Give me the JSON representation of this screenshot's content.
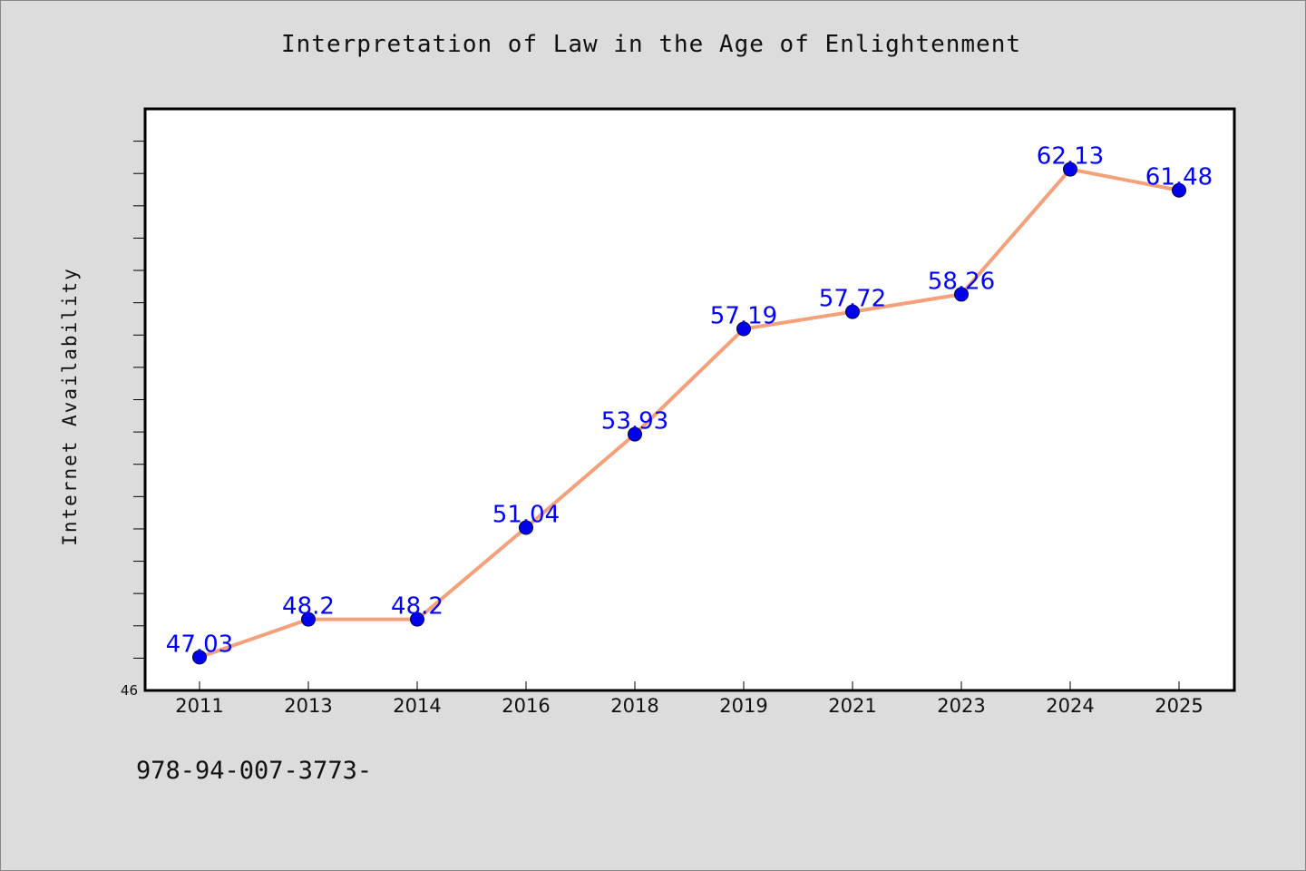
{
  "chart_data": {
    "type": "line",
    "title": "Interpretation of Law in the Age of Enlightenment",
    "xlabel": "",
    "ylabel": "Internet Availability",
    "categories": [
      "2011",
      "2013",
      "2014",
      "2016",
      "2018",
      "2019",
      "2021",
      "2023",
      "2024",
      "2025"
    ],
    "series": [
      {
        "values": [
          47.03,
          48.2,
          48.2,
          51.04,
          53.93,
          57.19,
          57.72,
          58.26,
          62.13,
          61.48
        ],
        "labels": [
          "47.03",
          "48.2",
          "48.2",
          "51.04",
          "53.93",
          "57.19",
          "57.72",
          "58.26",
          "62.13",
          "61.48"
        ]
      }
    ],
    "ylim": [
      46,
      64
    ],
    "y_tick_labels": [
      "46"
    ],
    "grid": false,
    "legend": "none",
    "colors": {
      "line": "#f4a07a",
      "marker": "#0000ee",
      "data_label": "#0000ff",
      "plot_background": "#ffffff",
      "page_background": "#dcdcdc"
    }
  },
  "footer": {
    "text": "978-94-007-3773-"
  }
}
